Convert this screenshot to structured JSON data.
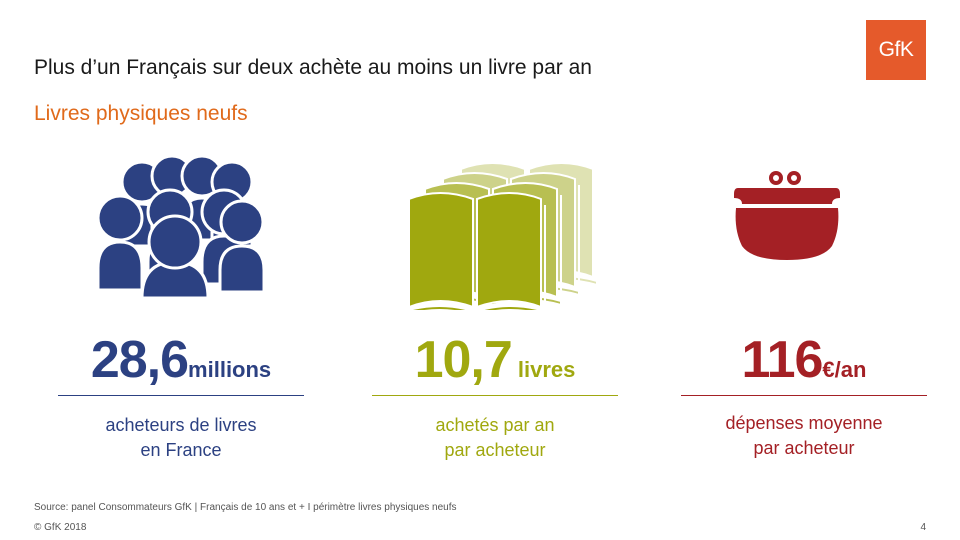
{
  "header": {
    "title": "Plus d’un Français sur deux achète au moins un livre par an",
    "subtitle": "Livres physiques neufs",
    "logo_text": "GfK"
  },
  "stats": [
    {
      "value": "28,6",
      "unit": "millions",
      "line1": "acheteurs de livres",
      "line2": "en France",
      "icon": "people-group-icon",
      "color": "#2c4182"
    },
    {
      "value": "10,7",
      "unit": " livres",
      "line1": "achetés par an",
      "line2": "par acheteur",
      "icon": "open-books-icon",
      "color": "#a0a80f"
    },
    {
      "value": "116",
      "unit": "€/an",
      "line1": "dépenses moyenne",
      "line2": "par acheteur",
      "icon": "purse-icon",
      "color": "#a42025"
    }
  ],
  "footer": {
    "source": "Source: panel Consommateurs GfK | Français de 10 ans et + I périmètre livres physiques neufs",
    "copyright": "© GfK 2018",
    "page_number": "4"
  },
  "colors": {
    "brand": "#e55a2b",
    "subtitle": "#e06a1b",
    "book_light_1": "#dfe2b3",
    "book_light_2": "#cdd28a",
    "book_light_3": "#b8bf52"
  }
}
